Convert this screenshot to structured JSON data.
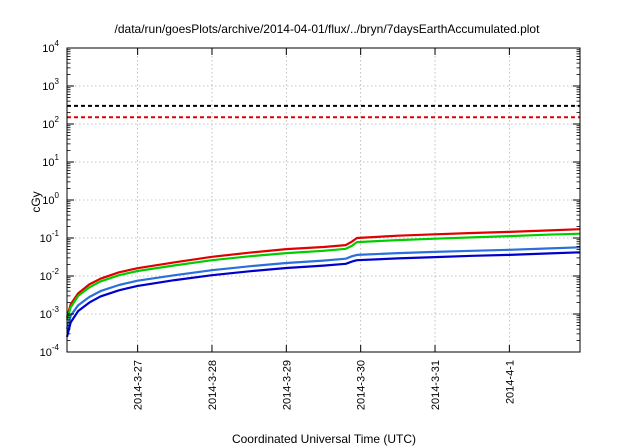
{
  "chart_data": {
    "type": "line",
    "title": "/data/run/goesPlots/archive/2014-04-01/flux/../bryn/7daysEarthAccumulated.plot",
    "xlabel": "Coordinated Universal Time (UTC)",
    "ylabel": "cGy",
    "yscale": "log",
    "ylim": [
      0.0001,
      10000
    ],
    "y_ticks": [
      {
        "value": 0.0001,
        "base": "10",
        "exp": "-4"
      },
      {
        "value": 0.001,
        "base": "10",
        "exp": "-3"
      },
      {
        "value": 0.01,
        "base": "10",
        "exp": "-2"
      },
      {
        "value": 0.1,
        "base": "10",
        "exp": "-1"
      },
      {
        "value": 1,
        "base": "10",
        "exp": "0"
      },
      {
        "value": 10,
        "base": "10",
        "exp": "1"
      },
      {
        "value": 100,
        "base": "10",
        "exp": "2"
      },
      {
        "value": 1000,
        "base": "10",
        "exp": "3"
      },
      {
        "value": 10000,
        "base": "10",
        "exp": "4"
      }
    ],
    "xlim": [
      26.05,
      32.95
    ],
    "x_ticks": [
      {
        "value": 27,
        "label": "2014-3-27"
      },
      {
        "value": 28,
        "label": "2014-3-28"
      },
      {
        "value": 29,
        "label": "2014-3-29"
      },
      {
        "value": 30,
        "label": "2014-3-30"
      },
      {
        "value": 31,
        "label": "2014-3-31"
      },
      {
        "value": 32,
        "label": "2014-4-1"
      }
    ],
    "grid": true,
    "legend": "none",
    "reference_lines": [
      {
        "y": 300,
        "color": "#000000",
        "style": "dashed"
      },
      {
        "y": 150,
        "color": "#e00000",
        "style": "dashed"
      }
    ],
    "series": [
      {
        "color": "#e00000",
        "x": [
          26.05,
          26.1,
          26.2,
          26.35,
          26.5,
          26.75,
          27.0,
          27.5,
          28.0,
          28.5,
          29.0,
          29.5,
          29.8,
          29.88,
          29.95,
          30.5,
          31.0,
          31.5,
          32.0,
          32.5,
          32.95
        ],
        "y": [
          0.0008,
          0.0018,
          0.0035,
          0.006,
          0.0085,
          0.0125,
          0.016,
          0.023,
          0.032,
          0.041,
          0.051,
          0.058,
          0.065,
          0.08,
          0.1,
          0.115,
          0.125,
          0.135,
          0.145,
          0.158,
          0.17
        ]
      },
      {
        "color": "#00cc00",
        "x": [
          26.05,
          26.1,
          26.2,
          26.35,
          26.5,
          26.75,
          27.0,
          27.5,
          28.0,
          28.5,
          29.0,
          29.5,
          29.8,
          29.88,
          29.95,
          30.5,
          31.0,
          31.5,
          32.0,
          32.5,
          32.95
        ],
        "y": [
          0.0007,
          0.0015,
          0.003,
          0.005,
          0.0072,
          0.0105,
          0.0135,
          0.019,
          0.026,
          0.033,
          0.04,
          0.046,
          0.052,
          0.062,
          0.078,
          0.088,
          0.096,
          0.104,
          0.112,
          0.122,
          0.13
        ]
      },
      {
        "color": "#2a6fdb",
        "x": [
          26.05,
          26.1,
          26.2,
          26.35,
          26.5,
          26.75,
          27.0,
          27.5,
          28.0,
          28.5,
          29.0,
          29.5,
          29.8,
          29.88,
          29.95,
          30.5,
          31.0,
          31.5,
          32.0,
          32.5,
          32.95
        ],
        "y": [
          0.0004,
          0.0009,
          0.0017,
          0.0028,
          0.004,
          0.0058,
          0.0075,
          0.0105,
          0.0142,
          0.018,
          0.022,
          0.0255,
          0.0285,
          0.033,
          0.036,
          0.04,
          0.043,
          0.046,
          0.049,
          0.053,
          0.057
        ]
      },
      {
        "color": "#0000cc",
        "x": [
          26.05,
          26.1,
          26.2,
          26.35,
          26.5,
          26.75,
          27.0,
          27.5,
          28.0,
          28.5,
          29.0,
          29.5,
          29.8,
          29.88,
          29.95,
          30.5,
          31.0,
          31.5,
          32.0,
          32.5,
          32.95
        ],
        "y": [
          0.00025,
          0.0006,
          0.0012,
          0.002,
          0.0029,
          0.0042,
          0.0055,
          0.0078,
          0.0105,
          0.0133,
          0.0162,
          0.0188,
          0.021,
          0.024,
          0.026,
          0.029,
          0.0315,
          0.034,
          0.036,
          0.039,
          0.042
        ]
      }
    ]
  }
}
